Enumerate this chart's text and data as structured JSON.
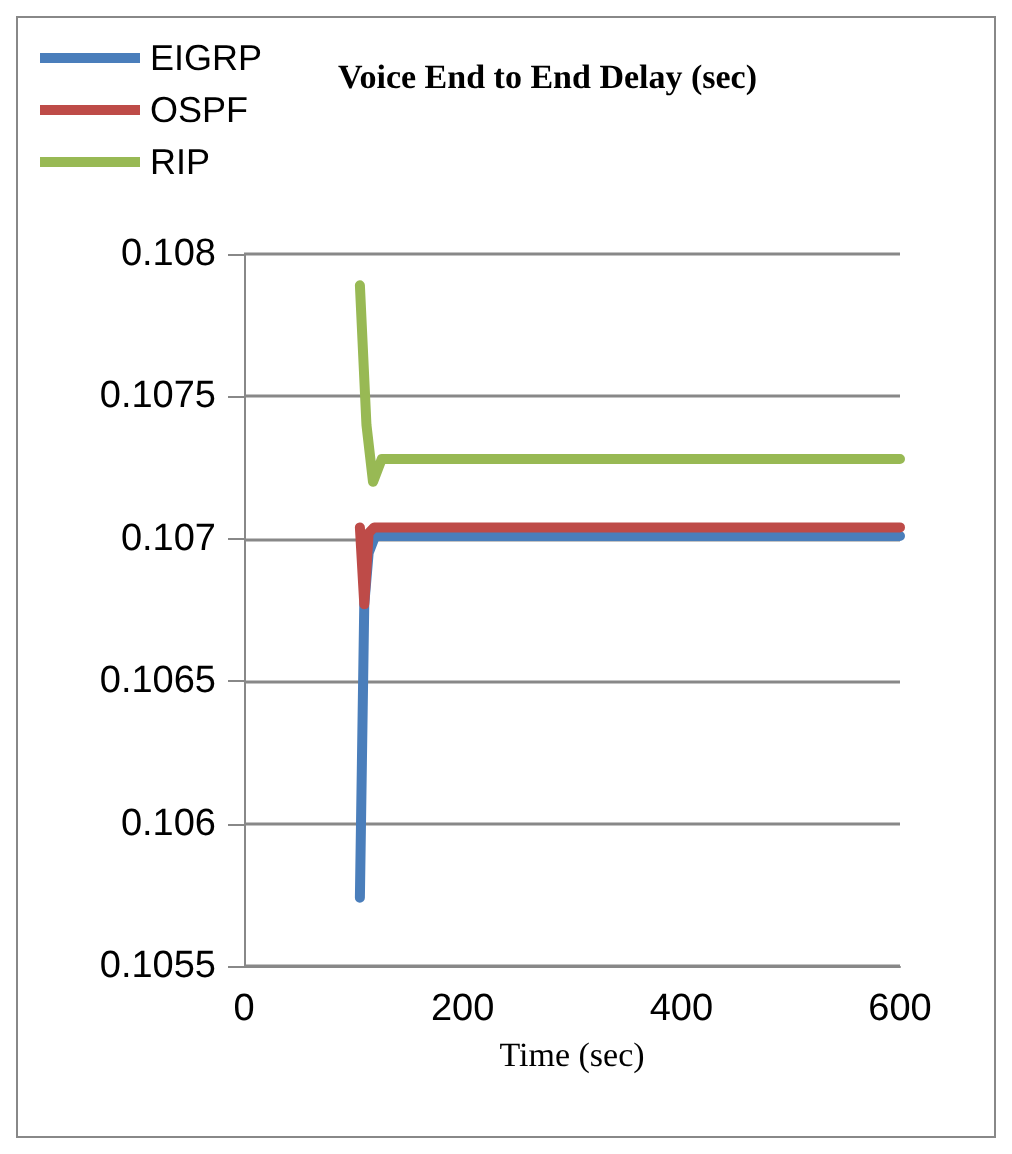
{
  "chart_data": {
    "type": "line",
    "title": "Voice End to End Delay (sec)",
    "xlabel": "Time (sec)",
    "xlim": [
      0,
      600
    ],
    "xticks": [
      0,
      200,
      400,
      600
    ],
    "ylim": [
      0.1055,
      0.108
    ],
    "yticks": [
      0.1055,
      0.106,
      0.1065,
      0.107,
      0.1075,
      0.108
    ],
    "grid": "y",
    "legend": "top left",
    "marker": "none",
    "line_style": "solid",
    "series": [
      {
        "name": "EIGRP",
        "color": "#4a7ebb",
        "x": [
          106,
          110,
          114,
          120,
          600
        ],
        "values": [
          0.10574,
          0.10677,
          0.10695,
          0.10701,
          0.10701
        ]
      },
      {
        "name": "OSPF",
        "color": "#be4b48",
        "x": [
          106,
          110,
          114,
          119,
          600
        ],
        "values": [
          0.10704,
          0.10677,
          0.10702,
          0.10704,
          0.10704
        ]
      },
      {
        "name": "RIP",
        "color": "#98b954",
        "x": [
          106,
          112,
          118,
          126,
          600
        ],
        "values": [
          0.10789,
          0.1074,
          0.1072,
          0.10728,
          0.10728
        ]
      }
    ]
  }
}
